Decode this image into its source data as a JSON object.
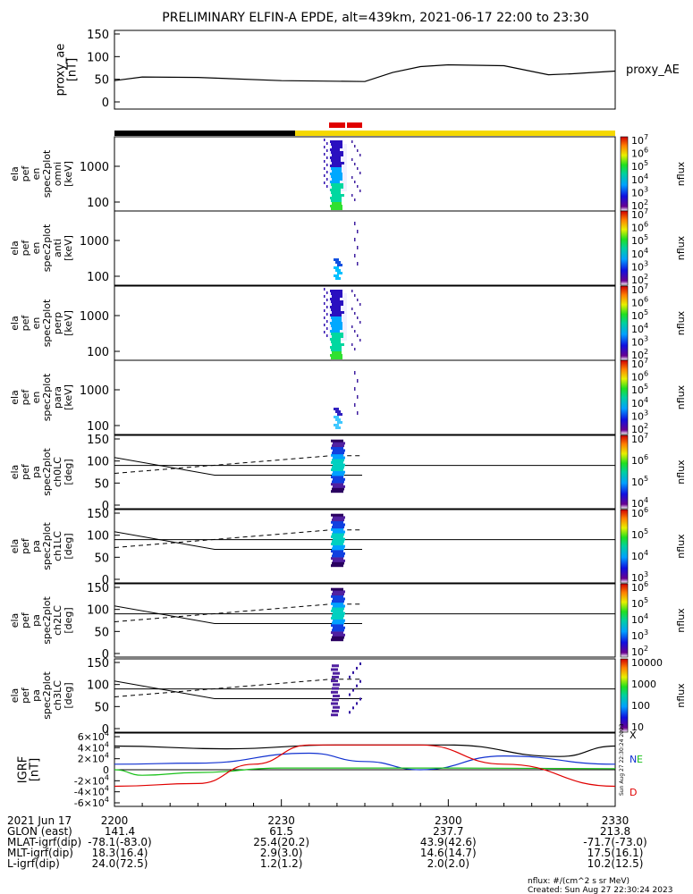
{
  "title": "PRELIMINARY ELFIN-A EPDE, alt=439km, 2021-06-17 22:00 to 23:30",
  "bottom_axis": {
    "date_label": "2021 Jun 17",
    "times": [
      "2200",
      "2230",
      "2300",
      "2330"
    ],
    "rows": [
      {
        "label": "GLON (east)",
        "values": [
          "141.4",
          "61.5",
          "237.7",
          "213.8"
        ]
      },
      {
        "label": "MLAT-igrf(dip)",
        "values": [
          "-78.1(-83.0)",
          "25.4(20.2)",
          "43.9(42.6)",
          "-71.7(-73.0)"
        ]
      },
      {
        "label": "MLT-igrf(dip)",
        "values": [
          "18.3(16.4)",
          "2.9(3.0)",
          "14.6(14.7)",
          "17.5(16.1)"
        ]
      },
      {
        "label": "L-igrf(dip)",
        "values": [
          "24.0(72.5)",
          "1.2(1.2)",
          "2.0(2.0)",
          "10.2(12.5)"
        ]
      }
    ]
  },
  "footer": {
    "units_note": "nflux: #/(cm^2 s sr MeV)",
    "created": "Created: Sun Aug 27 22:30:24 2023"
  },
  "side_stamp": "Sun Aug 27 22:30:24 2023",
  "colors": {
    "ae_line": "#000000",
    "sci_zone": "#e00000",
    "bar_dark": "#000000",
    "bar_sunlit": "#f5d800",
    "igrf_x": "#000000",
    "igrf_n": "#1030d0",
    "igrf_e": "#18c018",
    "igrf_d": "#e00000"
  },
  "chart_data": [
    {
      "type": "line",
      "panel": "proxy_ae",
      "ylabel": "proxy_ae\n[nT]",
      "legend": "proxy_AE",
      "ylim": [
        0,
        150
      ],
      "yticks": [
        "0",
        "50",
        "100",
        "150"
      ],
      "x_minutes": [
        0,
        5,
        15,
        30,
        45,
        50,
        55,
        60,
        70,
        78,
        82,
        90
      ],
      "values": [
        47,
        55,
        54,
        47,
        45,
        65,
        78,
        82,
        80,
        60,
        62,
        68
      ]
    },
    {
      "type": "heatmap",
      "panel": "energy spectrograms",
      "subpanels": [
        {
          "ylabel": "ela\npef\nen\nspec2plot\nomni\n[keV]",
          "zlabel": "nflux",
          "zticks": [
            "10^2",
            "10^3",
            "10^4",
            "10^5",
            "10^6",
            "10^7"
          ]
        },
        {
          "ylabel": "ela\npef\nen\nspec2plot\nanti\n[keV]",
          "zlabel": "nflux",
          "zticks": [
            "10^2",
            "10^3",
            "10^4",
            "10^5",
            "10^6",
            "10^7"
          ]
        },
        {
          "ylabel": "ela\npef\nen\nspec2plot\nperp\n[keV]",
          "zlabel": "nflux",
          "zticks": [
            "10^2",
            "10^3",
            "10^4",
            "10^5",
            "10^6",
            "10^7"
          ]
        },
        {
          "ylabel": "ela\npef\nen\nspec2plot\npara\n[keV]",
          "zlabel": "nflux",
          "zticks": [
            "10^2",
            "10^3",
            "10^4",
            "10^5",
            "10^6",
            "10^7"
          ]
        }
      ],
      "yticks": [
        "100",
        "1000"
      ],
      "note": "activity between ~22:35 and ~22:40"
    },
    {
      "type": "heatmap",
      "panel": "pitch angle spectrograms",
      "subpanels": [
        {
          "ylabel": "ela\npef\npa\nspec2plot\nch0LC\n[deg]",
          "zlabel": "nflux",
          "zticks": [
            "10^4",
            "10^5",
            "10^6",
            "10^7"
          ]
        },
        {
          "ylabel": "ela\npef\npa\nspec2plot\nch1LC\n[deg]",
          "zlabel": "nflux",
          "zticks": [
            "10^3",
            "10^4",
            "10^5",
            "10^6"
          ]
        },
        {
          "ylabel": "ela\npef\npa\nspec2plot\nch2LC\n[deg]",
          "zlabel": "nflux",
          "zticks": [
            "10^2",
            "10^3",
            "10^4",
            "10^5",
            "10^6"
          ]
        },
        {
          "ylabel": "ela\npef\npa\nspec2plot\nch3LC\n[deg]",
          "zlabel": "nflux",
          "zticks": [
            "10",
            "100",
            "1000",
            "10000"
          ]
        }
      ],
      "ylim": [
        0,
        150
      ],
      "yticks": [
        "0",
        "50",
        "100",
        "150"
      ]
    },
    {
      "type": "line",
      "panel": "IGRF",
      "ylabel": "IGRF\n[nT]",
      "ylim": [
        -60000,
        60000
      ],
      "yticks": [
        "-6×10^4",
        "-4×10^4",
        "-2×10^4",
        "0",
        "2×10^4",
        "4×10^4",
        "6×10^4"
      ],
      "series": [
        {
          "name": "X",
          "x_minutes": [
            0,
            20,
            40,
            60,
            80,
            90
          ],
          "values": [
            43000,
            38000,
            45000,
            45000,
            24000,
            43000
          ]
        },
        {
          "name": "N",
          "x_minutes": [
            0,
            15,
            35,
            45,
            55,
            70,
            90
          ],
          "values": [
            10000,
            12000,
            30000,
            15000,
            0,
            25000,
            10000
          ]
        },
        {
          "name": "E",
          "x_minutes": [
            0,
            5,
            15,
            30,
            60,
            90
          ],
          "values": [
            0,
            -10000,
            -5000,
            3000,
            3000,
            2000
          ]
        },
        {
          "name": "D",
          "x_minutes": [
            0,
            15,
            25,
            35,
            55,
            70,
            90
          ],
          "values": [
            -30000,
            -25000,
            10000,
            45000,
            45000,
            10000,
            -30000
          ]
        }
      ]
    }
  ]
}
